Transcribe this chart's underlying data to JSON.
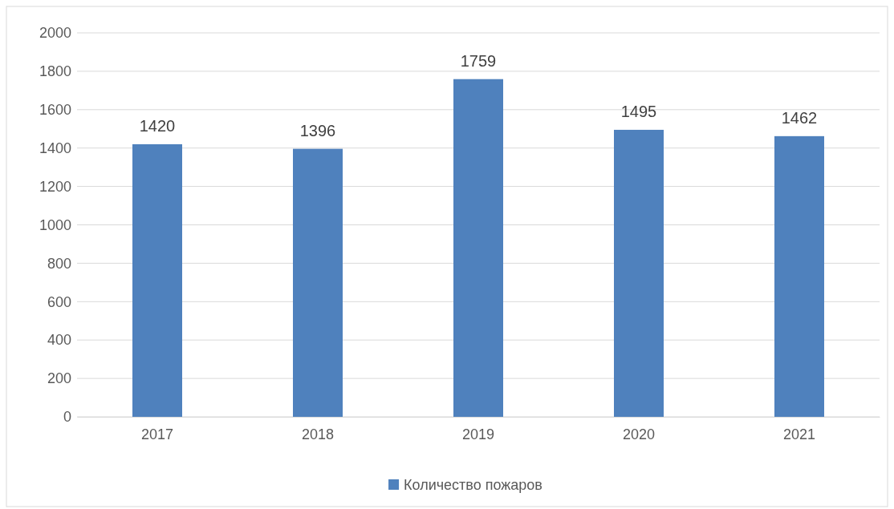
{
  "chart_data": {
    "type": "bar",
    "categories": [
      "2017",
      "2018",
      "2019",
      "2020",
      "2021"
    ],
    "series": [
      {
        "name": "Количество пожаров",
        "color": "#4f81bd",
        "values": [
          1420,
          1396,
          1759,
          1495,
          1462
        ]
      }
    ],
    "ylim": [
      0,
      2000
    ],
    "yticks": [
      0,
      200,
      400,
      600,
      800,
      1000,
      1200,
      1400,
      1600,
      1800,
      2000
    ],
    "grid": "y",
    "legend": "bottom",
    "data_labels": true
  }
}
